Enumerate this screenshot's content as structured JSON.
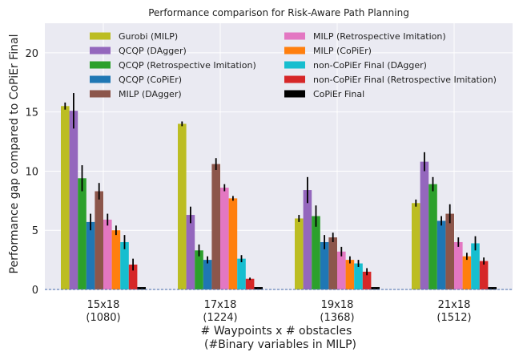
{
  "chart_data": {
    "type": "bar",
    "title": "Performance comparison for Risk-Aware Path Planning",
    "xlabel_line1": "# Waypoints x # obstacles",
    "xlabel_line2": "(#Binary variables in MILP)",
    "ylabel": "Performance gap compared to CoPiEr Final",
    "ylim": [
      0,
      22.5
    ],
    "yticks": [
      0,
      5,
      10,
      15,
      20
    ],
    "grid": true,
    "legend_position": "top",
    "categories": [
      {
        "line1": "15x18",
        "line2": "(1080)"
      },
      {
        "line1": "17x18",
        "line2": "(1224)"
      },
      {
        "line1": "19x18",
        "line2": "(1368)"
      },
      {
        "line1": "21x18",
        "line2": "(1512)"
      }
    ],
    "series": [
      {
        "name": "Gurobi (MILP)",
        "color": "#bcbd22",
        "values": [
          15.5,
          14.0,
          6.0,
          7.3
        ],
        "errors": [
          0.3,
          0.2,
          0.3,
          0.3
        ]
      },
      {
        "name": "QCQP (DAgger)",
        "color": "#9467bd",
        "values": [
          15.1,
          6.3,
          8.4,
          10.8
        ],
        "errors": [
          1.5,
          0.7,
          1.1,
          0.8
        ]
      },
      {
        "name": "QCQP (Retrospective Imitation)",
        "color": "#2ca02c",
        "values": [
          9.4,
          3.3,
          6.2,
          8.9
        ],
        "errors": [
          1.1,
          0.5,
          0.9,
          0.6
        ]
      },
      {
        "name": "QCQP (CoPiEr)",
        "color": "#1f77b4",
        "values": [
          5.7,
          2.5,
          4.0,
          5.8
        ],
        "errors": [
          0.7,
          0.3,
          0.6,
          0.4
        ]
      },
      {
        "name": "MILP (DAgger)",
        "color": "#8c564b",
        "values": [
          8.3,
          10.6,
          4.4,
          6.4
        ],
        "errors": [
          0.7,
          0.5,
          0.4,
          0.8
        ]
      },
      {
        "name": "MILP (Retrospective Imitation)",
        "color": "#e377c2",
        "values": [
          5.9,
          8.6,
          3.2,
          4.0
        ],
        "errors": [
          0.5,
          0.3,
          0.4,
          0.4
        ]
      },
      {
        "name": "MILP (CoPiEr)",
        "color": "#ff7f0e",
        "values": [
          5.0,
          7.7,
          2.5,
          2.8
        ],
        "errors": [
          0.4,
          0.2,
          0.3,
          0.3
        ]
      },
      {
        "name": "non-CoPiEr Final (DAgger)",
        "color": "#17becf",
        "values": [
          4.0,
          2.6,
          2.2,
          3.9
        ],
        "errors": [
          0.6,
          0.3,
          0.3,
          0.6
        ]
      },
      {
        "name": "non-CoPiEr Final (Retrospective Imitation)",
        "color": "#d62728",
        "values": [
          2.1,
          0.9,
          1.5,
          2.4
        ],
        "errors": [
          0.5,
          0.1,
          0.3,
          0.3
        ]
      },
      {
        "name": "CoPiEr Final",
        "color": "#000000",
        "values": [
          0.2,
          0.2,
          0.2,
          0.2
        ],
        "errors": [
          0,
          0,
          0,
          0
        ]
      }
    ]
  }
}
